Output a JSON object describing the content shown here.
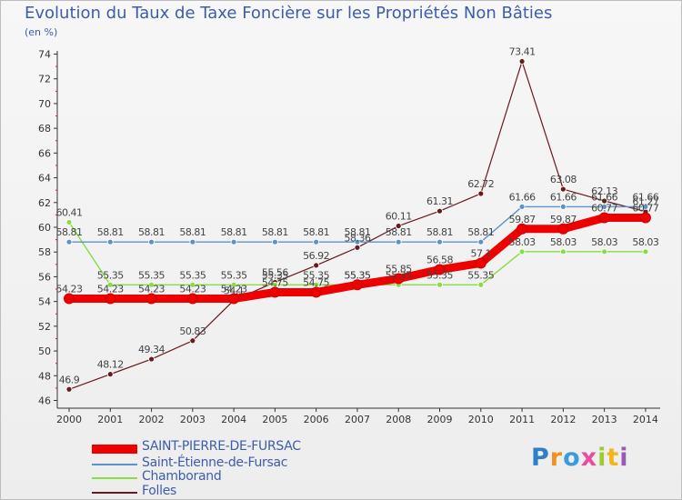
{
  "chart_data": {
    "type": "line",
    "title": "Evolution du Taux de Taxe Foncière sur les Propriétés Non Bâties",
    "unit": "(en %)",
    "categories": [
      "2000",
      "2001",
      "2002",
      "2003",
      "2004",
      "2005",
      "2006",
      "2007",
      "2008",
      "2009",
      "2010",
      "2011",
      "2012",
      "2013",
      "2014"
    ],
    "ylim": [
      46,
      74
    ],
    "yticks": [
      46,
      48,
      50,
      52,
      54,
      56,
      58,
      60,
      62,
      64,
      66,
      68,
      70,
      72,
      74
    ],
    "grid": false,
    "series": [
      {
        "name": "SAINT-PIERRE-DE-FURSAC",
        "color": "#ee0000",
        "values": [
          54.23,
          54.23,
          54.23,
          54.23,
          54.23,
          54.75,
          54.75,
          55.35,
          55.85,
          56.58,
          57.1,
          59.87,
          59.87,
          60.77,
          60.77
        ],
        "labels": [
          "54.23",
          "54.23",
          "54.23",
          "54.23",
          "54.23",
          "54.75",
          "54.75",
          "55.35",
          "55.85",
          "56.58",
          "57.1",
          "59.87",
          "59.87",
          "60.77",
          "60.77"
        ]
      },
      {
        "name": "Saint-Étienne-de-Fursac",
        "color": "#5b93c8",
        "values": [
          58.81,
          58.81,
          58.81,
          58.81,
          58.81,
          58.81,
          58.81,
          58.81,
          58.81,
          58.81,
          58.81,
          61.66,
          61.66,
          61.66,
          61.66
        ],
        "labels": [
          "58.81",
          "58.81",
          "58.81",
          "58.81",
          "58.81",
          "58.81",
          "58.81",
          "58.81",
          "58.81",
          "58.81",
          "58.81",
          "61.66",
          "61.66",
          "61.66",
          "61.66"
        ]
      },
      {
        "name": "Chamborand",
        "color": "#88dd44",
        "values": [
          60.41,
          55.35,
          55.35,
          55.35,
          55.35,
          55.35,
          55.35,
          55.35,
          55.35,
          55.35,
          55.35,
          58.03,
          58.03,
          58.03,
          58.03
        ],
        "labels": [
          "60.41",
          "55.35",
          "55.35",
          "55.35",
          "55.35",
          "55.35",
          "55.35",
          "55.35",
          "55.35",
          "55.35",
          "55.35",
          "58.03",
          "58.03",
          "58.03",
          "58.03"
        ]
      },
      {
        "name": "Folles",
        "color": "#6a1a1a",
        "values": [
          46.9,
          48.12,
          49.34,
          50.83,
          54.1,
          55.56,
          56.92,
          58.36,
          60.11,
          61.31,
          62.72,
          73.41,
          63.08,
          62.13,
          61.27
        ],
        "labels": [
          "46.9",
          "48.12",
          "49.34",
          "50.83",
          "54.1",
          "55.56",
          "56.92",
          "58.36",
          "60.11",
          "61.31",
          "62.72",
          "73.41",
          "63.08",
          "62.13",
          "61.27"
        ]
      }
    ]
  },
  "legend": {
    "position": "bottom-left",
    "items": [
      "SAINT-PIERRE-DE-FURSAC",
      "Saint-Étienne-de-Fursac",
      "Chamborand",
      "Folles"
    ]
  },
  "brand": {
    "text": "Proxiti",
    "letters": [
      "P",
      "r",
      "o",
      "x",
      "i",
      "t",
      "i"
    ],
    "colors": [
      "#2f7fc6",
      "#f29121",
      "#3a9be0",
      "#e84ba0",
      "#9ccc2f",
      "#f3b51c",
      "#9b59b6"
    ]
  }
}
